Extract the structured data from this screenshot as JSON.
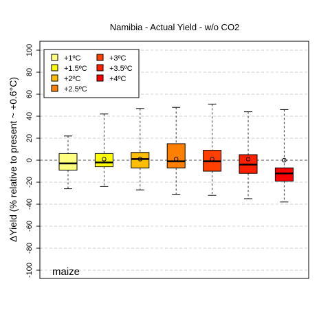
{
  "chart_data": {
    "type": "box",
    "title": "Namibia - Actual Yield - w/o CO2",
    "ylabel": "ΔYield (% relative to present ~ +0.6°C)",
    "xlabel": "",
    "ylim": [
      -105,
      110
    ],
    "yticks": [
      100,
      80,
      60,
      40,
      20,
      0,
      -20,
      -40,
      -60,
      -80,
      -100
    ],
    "grid": "horizontal-dashed",
    "legend_position": "top-left",
    "crop_label": "maize",
    "series": [
      {
        "name": "+1ºC",
        "color": "#ffff80",
        "whisker_low": -26,
        "q1": -9,
        "median": -3,
        "q3": 6,
        "whisker_high": 22,
        "mean": null
      },
      {
        "name": "+1.5ºC",
        "color": "#ffff00",
        "whisker_low": -24,
        "q1": -6,
        "median": -2,
        "q3": 6,
        "whisker_high": 42,
        "mean": 1
      },
      {
        "name": "+2ºC",
        "color": "#ffbf00",
        "whisker_low": -27,
        "q1": -7,
        "median": 1,
        "q3": 7,
        "whisker_high": 47,
        "mean": 1
      },
      {
        "name": "+2.5ºC",
        "color": "#ff8000",
        "whisker_low": -31,
        "q1": -7,
        "median": -1,
        "q3": 15,
        "whisker_high": 48,
        "mean": 1
      },
      {
        "name": "+3ºC",
        "color": "#ff4000",
        "whisker_low": -32,
        "q1": -10,
        "median": -1,
        "q3": 9,
        "whisker_high": 51,
        "mean": 1
      },
      {
        "name": "+3.5ºC",
        "color": "#ff2000",
        "whisker_low": -35,
        "q1": -12,
        "median": -4,
        "q3": 5,
        "whisker_high": 44,
        "mean": 1
      },
      {
        "name": "+4ºC",
        "color": "#ff0000",
        "whisker_low": -38,
        "q1": -19,
        "median": -12,
        "q3": -7,
        "whisker_high": 46,
        "mean": 0
      }
    ]
  }
}
